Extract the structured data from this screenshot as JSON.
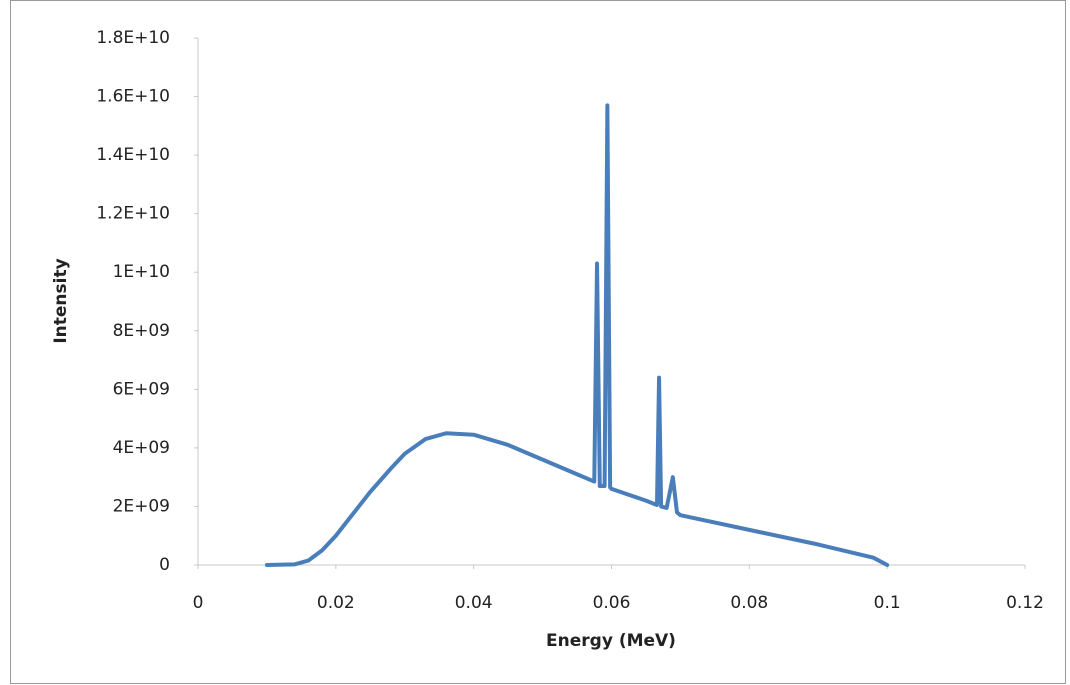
{
  "chart_data": {
    "type": "line",
    "x_label": "Energy (MeV)",
    "y_label": "Intensity",
    "x": [
      0.01,
      0.014,
      0.016,
      0.018,
      0.02,
      0.022,
      0.025,
      0.028,
      0.03,
      0.033,
      0.036,
      0.04,
      0.045,
      0.05,
      0.055,
      0.0575,
      0.0579,
      0.0583,
      0.059,
      0.0594,
      0.0598,
      0.06,
      0.065,
      0.0666,
      0.0669,
      0.0672,
      0.068,
      0.0689,
      0.0695,
      0.07,
      0.08,
      0.09,
      0.098,
      0.1
    ],
    "values": [
      0,
      20000000,
      150000000,
      500000000,
      1000000000,
      1600000000,
      2500000000,
      3300000000,
      3800000000,
      4300000000,
      4500000000,
      4450000000,
      4100000000,
      3600000000,
      3100000000,
      2850000000,
      10300000000,
      2700000000,
      2700000000,
      15700000000,
      2650000000,
      2600000000,
      2200000000,
      2050000000,
      6400000000,
      2000000000,
      1950000000,
      3000000000,
      1800000000,
      1700000000,
      1200000000,
      700000000,
      250000000,
      0
    ],
    "color": "#4a7ebb",
    "xlim": [
      0,
      0.12
    ],
    "xticks": [
      0,
      0.02,
      0.04,
      0.06,
      0.08,
      0.1,
      0.12
    ],
    "ylim": [
      0,
      18000000000
    ],
    "yticks": [
      0,
      {
        "value": 2000000000,
        "label": "2E+09"
      },
      {
        "value": 4000000000,
        "label": "4E+09"
      },
      {
        "value": 6000000000,
        "label": "6E+09"
      },
      {
        "value": 8000000000,
        "label": "8E+09"
      },
      {
        "value": 10000000000,
        "label": "1E+10"
      },
      {
        "value": 12000000000,
        "label": "1.2E+10"
      },
      {
        "value": 14000000000,
        "label": "1.4E+10"
      },
      {
        "value": 16000000000,
        "label": "1.6E+10"
      },
      {
        "value": 18000000000,
        "label": "1.8E+10"
      }
    ],
    "grid": false
  }
}
